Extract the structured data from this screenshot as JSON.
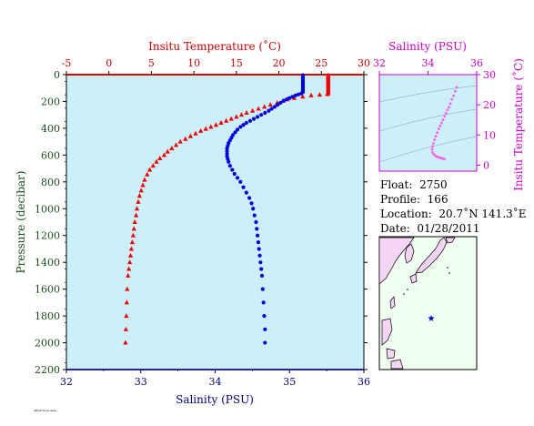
{
  "chart_data": [
    {
      "type": "scatter",
      "title": "",
      "x_bottom": {
        "label": "Salinity (PSU)",
        "range": [
          32,
          36
        ],
        "ticks": [
          32,
          33,
          34,
          35,
          36
        ],
        "color": "#000080"
      },
      "x_top": {
        "label": "Insitu Temperature (˚C)",
        "range": [
          -5,
          30
        ],
        "ticks": [
          -5,
          0,
          5,
          10,
          15,
          20,
          25,
          30
        ],
        "color": "#cc0000"
      },
      "y": {
        "label": "Pressure (decibar)",
        "range": [
          0,
          2200
        ],
        "inverted": true,
        "ticks": [
          0,
          200,
          400,
          600,
          800,
          1000,
          1200,
          1400,
          1600,
          1800,
          2000,
          2200
        ],
        "color": "#1a4d1a"
      },
      "series": [
        {
          "marker": "triangle",
          "color": "#ee0000",
          "points": [
            [
              25.8,
              4
            ],
            [
              25.8,
              10
            ],
            [
              25.8,
              20
            ],
            [
              25.8,
              30
            ],
            [
              25.8,
              40
            ],
            [
              25.8,
              50
            ],
            [
              25.8,
              60
            ],
            [
              25.8,
              70
            ],
            [
              25.8,
              80
            ],
            [
              25.8,
              90
            ],
            [
              25.8,
              100
            ],
            [
              25.8,
              110
            ],
            [
              25.8,
              120
            ],
            [
              25.8,
              130
            ],
            [
              25.8,
              140
            ],
            [
              25.7,
              146
            ],
            [
              24.8,
              150
            ],
            [
              23.8,
              155
            ],
            [
              22.8,
              165
            ],
            [
              21.8,
              175
            ],
            [
              21.0,
              185
            ],
            [
              20.5,
              195
            ],
            [
              19.8,
              210
            ],
            [
              19.0,
              225
            ],
            [
              18.3,
              240
            ],
            [
              17.6,
              255
            ],
            [
              16.9,
              270
            ],
            [
              16.2,
              285
            ],
            [
              15.6,
              300
            ],
            [
              15.0,
              315
            ],
            [
              14.4,
              330
            ],
            [
              13.8,
              345
            ],
            [
              13.2,
              360
            ],
            [
              12.6,
              375
            ],
            [
              12.0,
              390
            ],
            [
              11.4,
              405
            ],
            [
              10.8,
              420
            ],
            [
              10.2,
              440
            ],
            [
              9.6,
              460
            ],
            [
              9.0,
              480
            ],
            [
              8.4,
              500
            ],
            [
              7.9,
              525
            ],
            [
              7.4,
              550
            ],
            [
              6.9,
              575
            ],
            [
              6.5,
              600
            ],
            [
              6.0,
              625
            ],
            [
              5.6,
              650
            ],
            [
              5.2,
              680
            ],
            [
              4.8,
              710
            ],
            [
              4.5,
              745
            ],
            [
              4.2,
              785
            ],
            [
              4.0,
              825
            ],
            [
              3.8,
              865
            ],
            [
              3.6,
              905
            ],
            [
              3.45,
              950
            ],
            [
              3.3,
              1000
            ],
            [
              3.2,
              1050
            ],
            [
              3.05,
              1100
            ],
            [
              2.95,
              1150
            ],
            [
              2.85,
              1200
            ],
            [
              2.75,
              1250
            ],
            [
              2.65,
              1300
            ],
            [
              2.55,
              1350
            ],
            [
              2.45,
              1400
            ],
            [
              2.35,
              1450
            ],
            [
              2.25,
              1500
            ],
            [
              2.15,
              1600
            ],
            [
              2.1,
              1700
            ],
            [
              2.05,
              1800
            ],
            [
              2.0,
              1900
            ],
            [
              1.95,
              2000
            ]
          ]
        },
        {
          "marker": "circle",
          "color": "#0000dd",
          "points": [
            [
              35.18,
              4
            ],
            [
              35.18,
              10
            ],
            [
              35.18,
              20
            ],
            [
              35.18,
              30
            ],
            [
              35.18,
              40
            ],
            [
              35.18,
              50
            ],
            [
              35.18,
              60
            ],
            [
              35.18,
              70
            ],
            [
              35.18,
              80
            ],
            [
              35.18,
              90
            ],
            [
              35.18,
              100
            ],
            [
              35.18,
              110
            ],
            [
              35.18,
              120
            ],
            [
              35.18,
              130
            ],
            [
              35.16,
              140
            ],
            [
              35.12,
              148
            ],
            [
              35.08,
              155
            ],
            [
              35.04,
              165
            ],
            [
              35.0,
              175
            ],
            [
              34.96,
              185
            ],
            [
              34.92,
              195
            ],
            [
              34.88,
              210
            ],
            [
              34.84,
              225
            ],
            [
              34.8,
              240
            ],
            [
              34.76,
              255
            ],
            [
              34.72,
              270
            ],
            [
              34.67,
              285
            ],
            [
              34.62,
              300
            ],
            [
              34.57,
              315
            ],
            [
              34.52,
              330
            ],
            [
              34.47,
              345
            ],
            [
              34.42,
              360
            ],
            [
              34.38,
              375
            ],
            [
              34.34,
              390
            ],
            [
              34.3,
              410
            ],
            [
              34.27,
              430
            ],
            [
              34.24,
              450
            ],
            [
              34.22,
              470
            ],
            [
              34.2,
              490
            ],
            [
              34.18,
              510
            ],
            [
              34.17,
              530
            ],
            [
              34.16,
              550
            ],
            [
              34.16,
              570
            ],
            [
              34.16,
              590
            ],
            [
              34.16,
              610
            ],
            [
              34.17,
              630
            ],
            [
              34.18,
              650
            ],
            [
              34.2,
              680
            ],
            [
              34.23,
              710
            ],
            [
              34.26,
              740
            ],
            [
              34.3,
              770
            ],
            [
              34.34,
              800
            ],
            [
              34.38,
              840
            ],
            [
              34.42,
              880
            ],
            [
              34.46,
              920
            ],
            [
              34.49,
              960
            ],
            [
              34.51,
              1000
            ],
            [
              34.53,
              1050
            ],
            [
              34.55,
              1100
            ],
            [
              34.56,
              1150
            ],
            [
              34.57,
              1200
            ],
            [
              34.58,
              1250
            ],
            [
              34.59,
              1300
            ],
            [
              34.6,
              1350
            ],
            [
              34.61,
              1400
            ],
            [
              34.62,
              1450
            ],
            [
              34.63,
              1500
            ],
            [
              34.64,
              1600
            ],
            [
              34.65,
              1700
            ],
            [
              34.66,
              1800
            ],
            [
              34.67,
              1900
            ],
            [
              34.67,
              2000
            ]
          ]
        }
      ]
    },
    {
      "type": "scatter",
      "title": "",
      "x": {
        "label": "Salinity (PSU)",
        "range": [
          32,
          36
        ],
        "ticks": [
          32,
          34,
          36
        ],
        "color": "#cc00cc"
      },
      "y": {
        "label": "Insitu Temperature (˚C)",
        "range": [
          -2,
          30
        ],
        "ticks": [
          0,
          10,
          20,
          30
        ],
        "side": "right",
        "color": "#cc00cc"
      },
      "series": [
        {
          "marker": "dot",
          "color": "#ee66ee",
          "points": [
            [
              35.18,
              25.8
            ],
            [
              35.12,
              24.5
            ],
            [
              35.05,
              23.0
            ],
            [
              34.98,
              21.8
            ],
            [
              34.92,
              20.4
            ],
            [
              34.86,
              19.2
            ],
            [
              34.8,
              18.3
            ],
            [
              34.74,
              17.2
            ],
            [
              34.68,
              16.2
            ],
            [
              34.62,
              15.0
            ],
            [
              34.56,
              14.0
            ],
            [
              34.5,
              13.0
            ],
            [
              34.44,
              12.0
            ],
            [
              34.38,
              10.8
            ],
            [
              34.32,
              9.6
            ],
            [
              34.27,
              8.4
            ],
            [
              34.22,
              7.2
            ],
            [
              34.19,
              6.2
            ],
            [
              34.17,
              5.2
            ],
            [
              34.18,
              4.3
            ],
            [
              34.23,
              3.6
            ],
            [
              34.3,
              3.1
            ],
            [
              34.37,
              2.8
            ],
            [
              34.44,
              2.6
            ],
            [
              34.5,
              2.4
            ],
            [
              34.55,
              2.3
            ],
            [
              34.6,
              2.2
            ],
            [
              34.64,
              2.1
            ],
            [
              34.67,
              2.0
            ]
          ]
        }
      ]
    }
  ],
  "info": {
    "float_label": "Float:",
    "float_value": "2750",
    "profile_label": "Profile:",
    "profile_value": "166",
    "location_label": "Location:",
    "location_value": "20.7˚N  141.3˚E",
    "date_label": "Date:",
    "date_value": "01/28/2011"
  },
  "map": {
    "marker_symbol": "★",
    "marker_color": "#0000cc",
    "land_color": "#f5d5f5",
    "sea_color": "#f0fff0"
  },
  "footer_note": "ARGO float data"
}
